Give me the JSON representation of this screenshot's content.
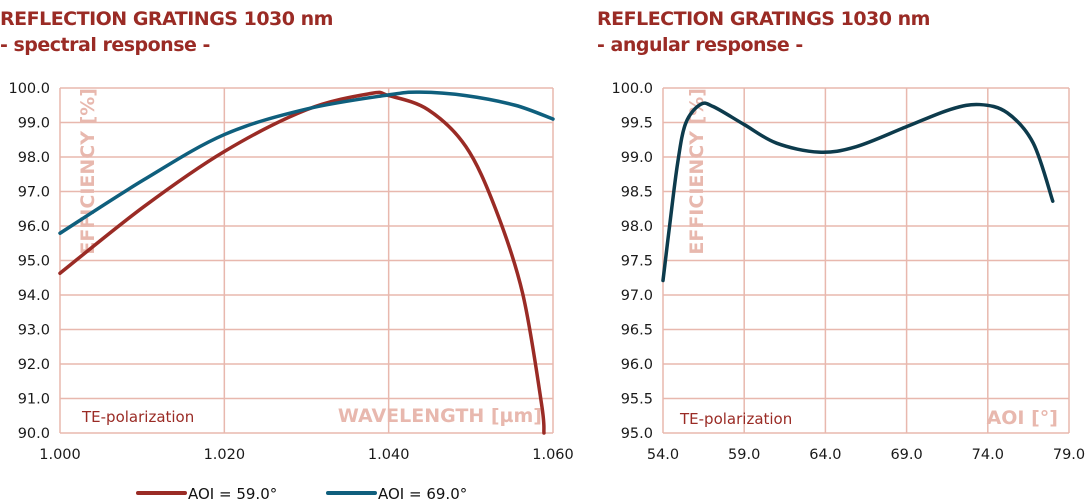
{
  "colors": {
    "grid": "#e8b8ae",
    "aoi59": "#9a2b25",
    "aoi69": "#0f5f7d",
    "angular": "#0d3b4c",
    "title": "#9a2b25"
  },
  "chart_data": [
    {
      "type": "line",
      "title": "REFLECTION GRATINGS 1030 nm",
      "subtitle": "- spectral response -",
      "xlabel": "WAVELENGTH [µm]",
      "ylabel": "EFFICIENCY [%]",
      "annotation": "TE-polarization",
      "xlim": [
        1.0,
        1.06
      ],
      "ylim": [
        90,
        100
      ],
      "xticks": [
        "1.000",
        "1.020",
        "1.040",
        "1.060"
      ],
      "yticks": [
        "90.0",
        "91.0",
        "92.0",
        "93.0",
        "94.0",
        "95.0",
        "96.0",
        "97.0",
        "98.0",
        "99.0",
        "100.0"
      ],
      "grid": true,
      "legend_position": "bottom",
      "series": [
        {
          "name": "AOI = 59.0°",
          "x": [
            1.0,
            1.0102,
            1.02,
            1.03,
            1.0378,
            1.04,
            1.0448,
            1.0494,
            1.053,
            1.0563,
            1.0586,
            1.0589
          ],
          "y": [
            94.63,
            96.56,
            98.16,
            99.37,
            99.84,
            99.78,
            99.37,
            98.3,
            96.5,
            94.05,
            90.85,
            90.0
          ]
        },
        {
          "name": "AOI = 69.0°",
          "x": [
            1.0,
            1.0102,
            1.02,
            1.03,
            1.04,
            1.0438,
            1.0494,
            1.0554,
            1.06
          ],
          "y": [
            95.79,
            97.34,
            98.65,
            99.39,
            99.8,
            99.88,
            99.78,
            99.5,
            99.1
          ]
        }
      ]
    },
    {
      "type": "line",
      "title": "REFLECTION GRATINGS 1030 nm",
      "subtitle": "- angular response -",
      "xlabel": "AOI [°]",
      "ylabel": "EFFICIENCY [%]",
      "annotation": "TE-polarization",
      "xlim": [
        54,
        79
      ],
      "ylim": [
        95,
        100
      ],
      "xticks": [
        "54.0",
        "59.0",
        "64.0",
        "69.0",
        "74.0",
        "79.0"
      ],
      "yticks": [
        "95.0",
        "95.5",
        "96.0",
        "96.5",
        "97.0",
        "97.5",
        "98.0",
        "98.5",
        "99.0",
        "99.5",
        "100.0"
      ],
      "grid": true,
      "series": [
        {
          "x": [
            54.0,
            54.4,
            54.9,
            55.4,
            56.3,
            57.1,
            59.0,
            61.0,
            63.6,
            65.9,
            69.0,
            71.7,
            73.5,
            75.2,
            76.8,
            78.0
          ],
          "y": [
            97.21,
            97.99,
            98.91,
            99.49,
            99.76,
            99.73,
            99.47,
            99.2,
            99.07,
            99.15,
            99.44,
            99.69,
            99.76,
            99.64,
            99.2,
            98.36
          ]
        }
      ]
    }
  ]
}
